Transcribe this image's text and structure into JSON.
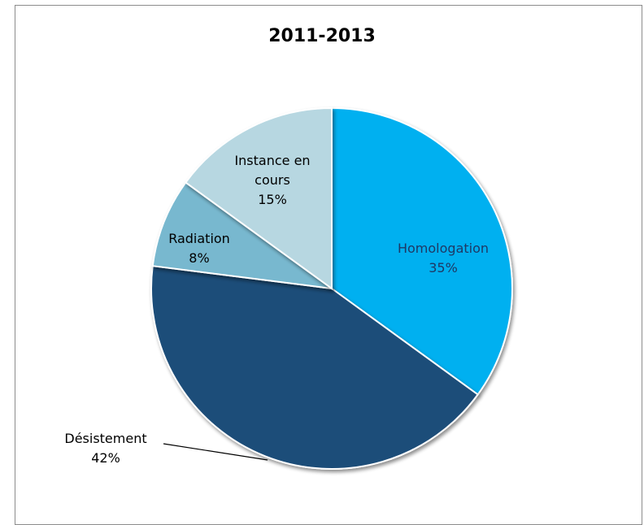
{
  "chart_data": {
    "type": "pie",
    "title": "2011-2013",
    "start_angle_deg": 0,
    "direction": "clockwise",
    "slices": [
      {
        "lines": [
          "Homologation"
        ],
        "value": 35,
        "value_label": "35%",
        "color": "#00b0f0",
        "text_color": "#1f3864"
      },
      {
        "lines": [
          "Désistement"
        ],
        "value": 42,
        "value_label": "42%",
        "color": "#1f4e79",
        "text_color": "#000000",
        "leader_line": true
      },
      {
        "lines": [
          "Radiation"
        ],
        "value": 8,
        "value_label": "8%",
        "color": "#78b8cf",
        "text_color": "#000000"
      },
      {
        "lines": [
          "Instance en",
          "cours"
        ],
        "value": 15,
        "value_label": "15%",
        "color": "#b7d7e1",
        "text_color": "#000000"
      }
    ]
  }
}
